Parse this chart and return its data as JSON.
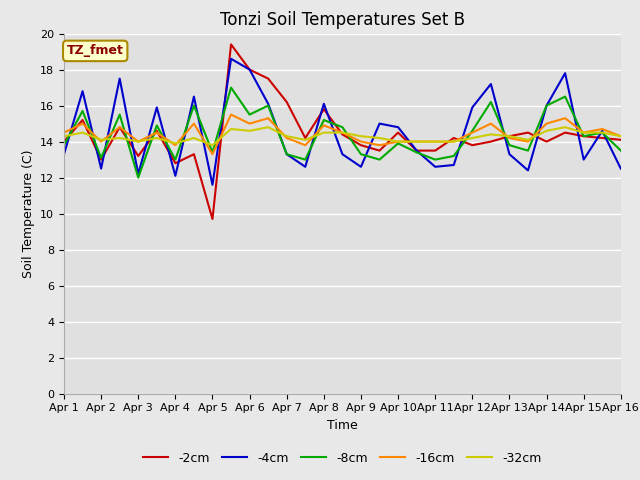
{
  "title": "Tonzi Soil Temperatures Set B",
  "xlabel": "Time",
  "ylabel": "Soil Temperature (C)",
  "annotation": "TZ_fmet",
  "ylim": [
    0,
    20
  ],
  "yticks": [
    0,
    2,
    4,
    6,
    8,
    10,
    12,
    14,
    16,
    18,
    20
  ],
  "x_labels": [
    "Apr 1",
    "Apr 2",
    "Apr 3",
    "Apr 4",
    "Apr 5",
    "Apr 6",
    "Apr 7",
    "Apr 8",
    "Apr 9",
    "Apr 10",
    "Apr 11",
    "Apr 12",
    "Apr 13",
    "Apr 14",
    "Apr 15",
    "Apr 16"
  ],
  "neg2cm_color": "#cc0000",
  "neg4cm_color": "#0000cc",
  "neg8cm_color": "#00aa00",
  "neg16cm_color": "#ff8800",
  "neg32cm_color": "#cccc00",
  "bg_color": "#e0e0e0",
  "fig_bg_color": "#e8e8e8",
  "grid_color": "#ffffff",
  "title_fontsize": 12,
  "axis_fontsize": 9,
  "tick_fontsize": 8,
  "legend_fontsize": 9,
  "neg2cm": [
    14.0,
    15.2,
    13.0,
    14.8,
    13.2,
    14.6,
    12.8,
    13.3,
    9.7,
    19.4,
    18.0,
    17.5,
    16.2,
    14.2,
    15.8,
    14.4,
    13.8,
    13.5,
    14.5,
    13.5,
    13.5,
    14.2,
    13.8,
    14.0,
    14.3,
    14.5,
    14.0,
    14.5,
    14.3,
    14.2,
    14.1
  ],
  "neg4cm": [
    13.3,
    16.8,
    12.5,
    17.5,
    12.2,
    15.9,
    12.1,
    16.5,
    11.6,
    18.6,
    18.0,
    16.1,
    13.3,
    12.6,
    16.1,
    13.3,
    12.6,
    15.0,
    14.8,
    13.5,
    12.6,
    12.7,
    15.9,
    17.2,
    13.3,
    12.4,
    16.0,
    17.8,
    13.0,
    14.6,
    12.5
  ],
  "neg8cm": [
    13.8,
    15.7,
    13.1,
    15.5,
    12.0,
    14.9,
    13.0,
    16.0,
    13.4,
    17.0,
    15.5,
    16.0,
    13.3,
    13.0,
    15.2,
    14.8,
    13.3,
    13.0,
    13.9,
    13.4,
    13.0,
    13.2,
    14.6,
    16.2,
    13.8,
    13.5,
    16.0,
    16.5,
    14.3,
    14.5,
    13.5
  ],
  "neg16cm": [
    14.5,
    15.0,
    14.0,
    14.8,
    14.0,
    14.5,
    13.8,
    15.0,
    13.3,
    15.5,
    15.0,
    15.3,
    14.2,
    13.8,
    14.9,
    14.5,
    14.0,
    13.8,
    14.0,
    14.0,
    14.0,
    14.0,
    14.5,
    15.0,
    14.2,
    14.0,
    15.0,
    15.3,
    14.5,
    14.7,
    14.3
  ],
  "neg32cm": [
    14.3,
    14.5,
    14.1,
    14.2,
    14.0,
    14.2,
    13.9,
    14.2,
    13.8,
    14.7,
    14.6,
    14.8,
    14.3,
    14.1,
    14.5,
    14.5,
    14.3,
    14.2,
    14.0,
    14.0,
    14.0,
    14.0,
    14.2,
    14.4,
    14.3,
    14.1,
    14.6,
    14.8,
    14.5,
    14.5,
    14.3
  ]
}
